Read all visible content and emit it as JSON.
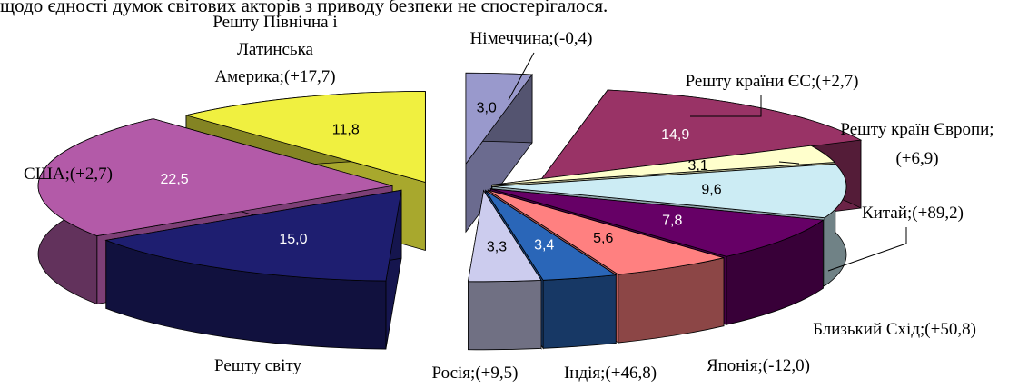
{
  "caption_fragment": "щодо єдності думок світових акторів з приводу безпеки не спостерігалося.",
  "chart_data": {
    "type": "pie",
    "subtype": "exploded-3d-pie",
    "slices": [
      {
        "key": "germany",
        "label": "Німеччина;(-0,4)",
        "value": 3.0,
        "value_label": "3,0",
        "color": "#9999cc"
      },
      {
        "key": "eu",
        "label": "Решту країни ЄС;(+2,7)",
        "value": 14.9,
        "value_label": "14,9",
        "color": "#993366"
      },
      {
        "key": "europe",
        "label": "Решту країн Європи;(+6,9)",
        "value": 3.1,
        "value_label": "3,1",
        "color": "#ffffcc"
      },
      {
        "key": "china",
        "label": "Китай;(+89,2)",
        "value": 9.6,
        "value_label": "9,6",
        "color": "#ccecf4"
      },
      {
        "key": "mideast",
        "label": "Близький Схід;(+50,8)",
        "value": 7.8,
        "value_label": "7,8",
        "color": "#660066"
      },
      {
        "key": "japan",
        "label": "Японія;(-12,0)",
        "value": 5.6,
        "value_label": "5,6",
        "color": "#ff8080"
      },
      {
        "key": "india",
        "label": "Індія;(+46,8)",
        "value": 3.4,
        "value_label": "3,4",
        "color": "#2a66b8"
      },
      {
        "key": "russia",
        "label": "Росія;(+9,5)",
        "value": 3.3,
        "value_label": "3,3",
        "color": "#ccccee"
      },
      {
        "key": "rest_world",
        "label": "Решту світу",
        "value": 15.0,
        "value_label": "15,0",
        "color": "#1e1e70"
      },
      {
        "key": "usa",
        "label": "США;(+2,7)",
        "value": 22.5,
        "value_label": "22,5",
        "color": "#b35aa8"
      },
      {
        "key": "americas",
        "label": "Решту Північна і Латинська Америка;(+17,7)",
        "label_lines": [
          "Решту Північна і",
          "Латинська",
          "Америка;(+17,7)"
        ],
        "value": 11.8,
        "value_label": "11,8",
        "color": "#f0f040"
      }
    ]
  }
}
